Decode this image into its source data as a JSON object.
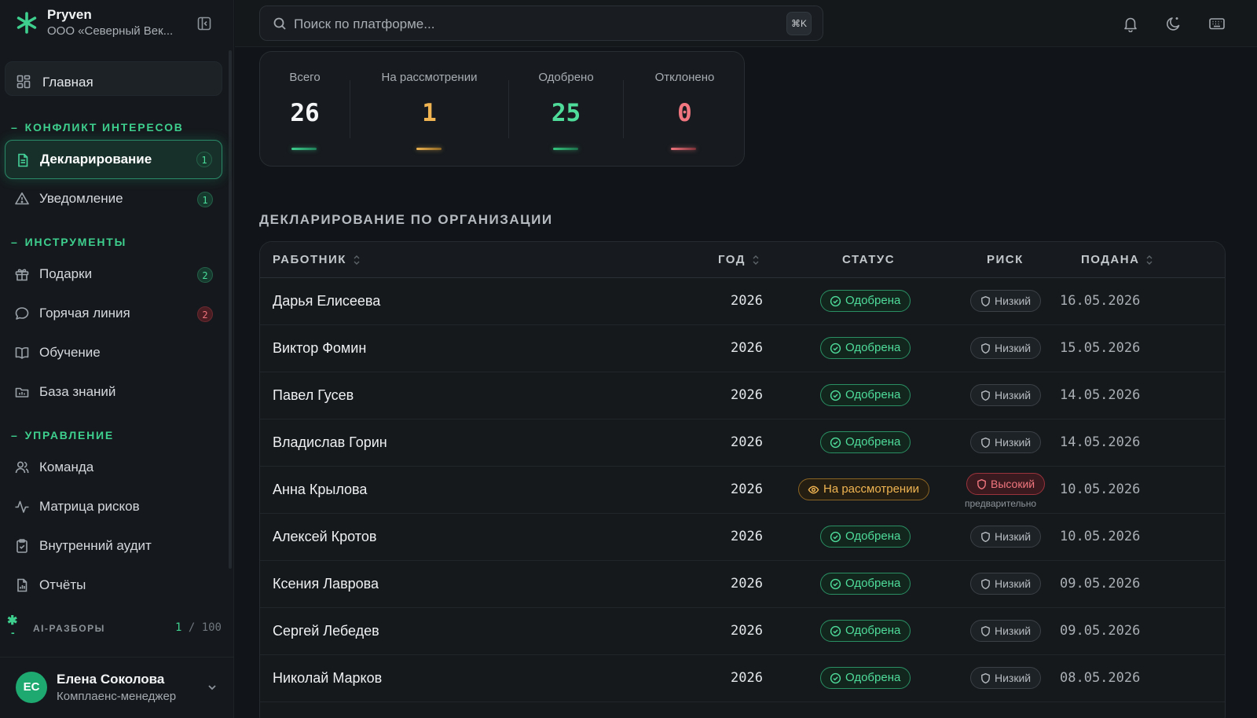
{
  "colors": {
    "accent": "#3ecf8e",
    "approved": "#4fdc9a",
    "review": "#f0b552",
    "rejected": "#f1767f",
    "total_bar": "#2fb987",
    "review_bar": "#e0a03c",
    "approved_bar": "#35c77f",
    "rejected_bar": "#d85a63"
  },
  "brand": {
    "name": "Pryven",
    "org": "ООО «Северный Век..."
  },
  "search": {
    "placeholder": "Поиск по платформе...",
    "shortcut": "⌘K"
  },
  "sidebar": {
    "home": {
      "label": "Главная",
      "icon": "grid-icon"
    },
    "sections": [
      {
        "title": "КОНФЛИКТ ИНТЕРЕСОВ",
        "items": [
          {
            "label": "Декларирование",
            "icon": "document-icon",
            "badge": "1",
            "active": true
          },
          {
            "label": "Уведомление",
            "icon": "warning-icon",
            "badge": "1"
          }
        ]
      },
      {
        "title": "ИНСТРУМЕНТЫ",
        "items": [
          {
            "label": "Подарки",
            "icon": "gift-icon",
            "badge": "2"
          },
          {
            "label": "Горячая линия",
            "icon": "chat-icon",
            "badge": "2"
          },
          {
            "label": "Обучение",
            "icon": "book-icon"
          },
          {
            "label": "База знаний",
            "icon": "folder-icon"
          }
        ]
      },
      {
        "title": "УПРАВЛЕНИЕ",
        "items": [
          {
            "label": "Команда",
            "icon": "users-icon"
          },
          {
            "label": "Матрица рисков",
            "icon": "activity-icon"
          },
          {
            "label": "Внутренний аудит",
            "icon": "clipboard-icon"
          },
          {
            "label": "Отчёты",
            "icon": "report-icon"
          }
        ]
      }
    ],
    "section_dash": "–",
    "ai": {
      "star": "✱",
      "dash": "-",
      "label": "AI-РАЗБОРЫ",
      "used": "1",
      "separator": "/",
      "limit": "100"
    }
  },
  "user": {
    "initials": "ЕС",
    "name": "Елена Соколова",
    "role": "Комплаенс-менеджер"
  },
  "stats": {
    "total": {
      "label": "Всего",
      "value": "26"
    },
    "review": {
      "label": "На рассмотрении",
      "value": "1"
    },
    "approved": {
      "label": "Одобрено",
      "value": "25"
    },
    "rejected": {
      "label": "Отклонено",
      "value": "0"
    }
  },
  "table": {
    "heading": "ДЕКЛАРИРОВАНИЕ ПО ОРГАНИЗАЦИИ",
    "columns": {
      "employee": "РАБОТНИК",
      "year": "ГОД",
      "status": "СТАТУС",
      "risk": "РИСК",
      "submitted": "ПОДАНА"
    },
    "rows": [
      {
        "name": "Дарья Елисеева",
        "year": "2026",
        "status": "Одобрена",
        "status_kind": "ok",
        "risk": "Низкий",
        "risk_kind": "low",
        "date": "16.05.2026"
      },
      {
        "name": "Виктор Фомин",
        "year": "2026",
        "status": "Одобрена",
        "status_kind": "ok",
        "risk": "Низкий",
        "risk_kind": "low",
        "date": "15.05.2026"
      },
      {
        "name": "Павел Гусев",
        "year": "2026",
        "status": "Одобрена",
        "status_kind": "ok",
        "risk": "Низкий",
        "risk_kind": "low",
        "date": "14.05.2026"
      },
      {
        "name": "Владислав Горин",
        "year": "2026",
        "status": "Одобрена",
        "status_kind": "ok",
        "risk": "Низкий",
        "risk_kind": "low",
        "date": "14.05.2026"
      },
      {
        "name": "Анна Крылова",
        "year": "2026",
        "status": "На рассмотрении",
        "status_kind": "review",
        "risk": "Высокий",
        "risk_kind": "high",
        "risk_note": "предварительно",
        "date": "10.05.2026"
      },
      {
        "name": "Алексей Кротов",
        "year": "2026",
        "status": "Одобрена",
        "status_kind": "ok",
        "risk": "Низкий",
        "risk_kind": "low",
        "date": "10.05.2026"
      },
      {
        "name": "Ксения Лаврова",
        "year": "2026",
        "status": "Одобрена",
        "status_kind": "ok",
        "risk": "Низкий",
        "risk_kind": "low",
        "date": "09.05.2026"
      },
      {
        "name": "Сергей Лебедев",
        "year": "2026",
        "status": "Одобрена",
        "status_kind": "ok",
        "risk": "Низкий",
        "risk_kind": "low",
        "date": "09.05.2026"
      },
      {
        "name": "Николай Марков",
        "year": "2026",
        "status": "Одобрена",
        "status_kind": "ok",
        "risk": "Низкий",
        "risk_kind": "low",
        "date": "08.05.2026"
      }
    ]
  }
}
